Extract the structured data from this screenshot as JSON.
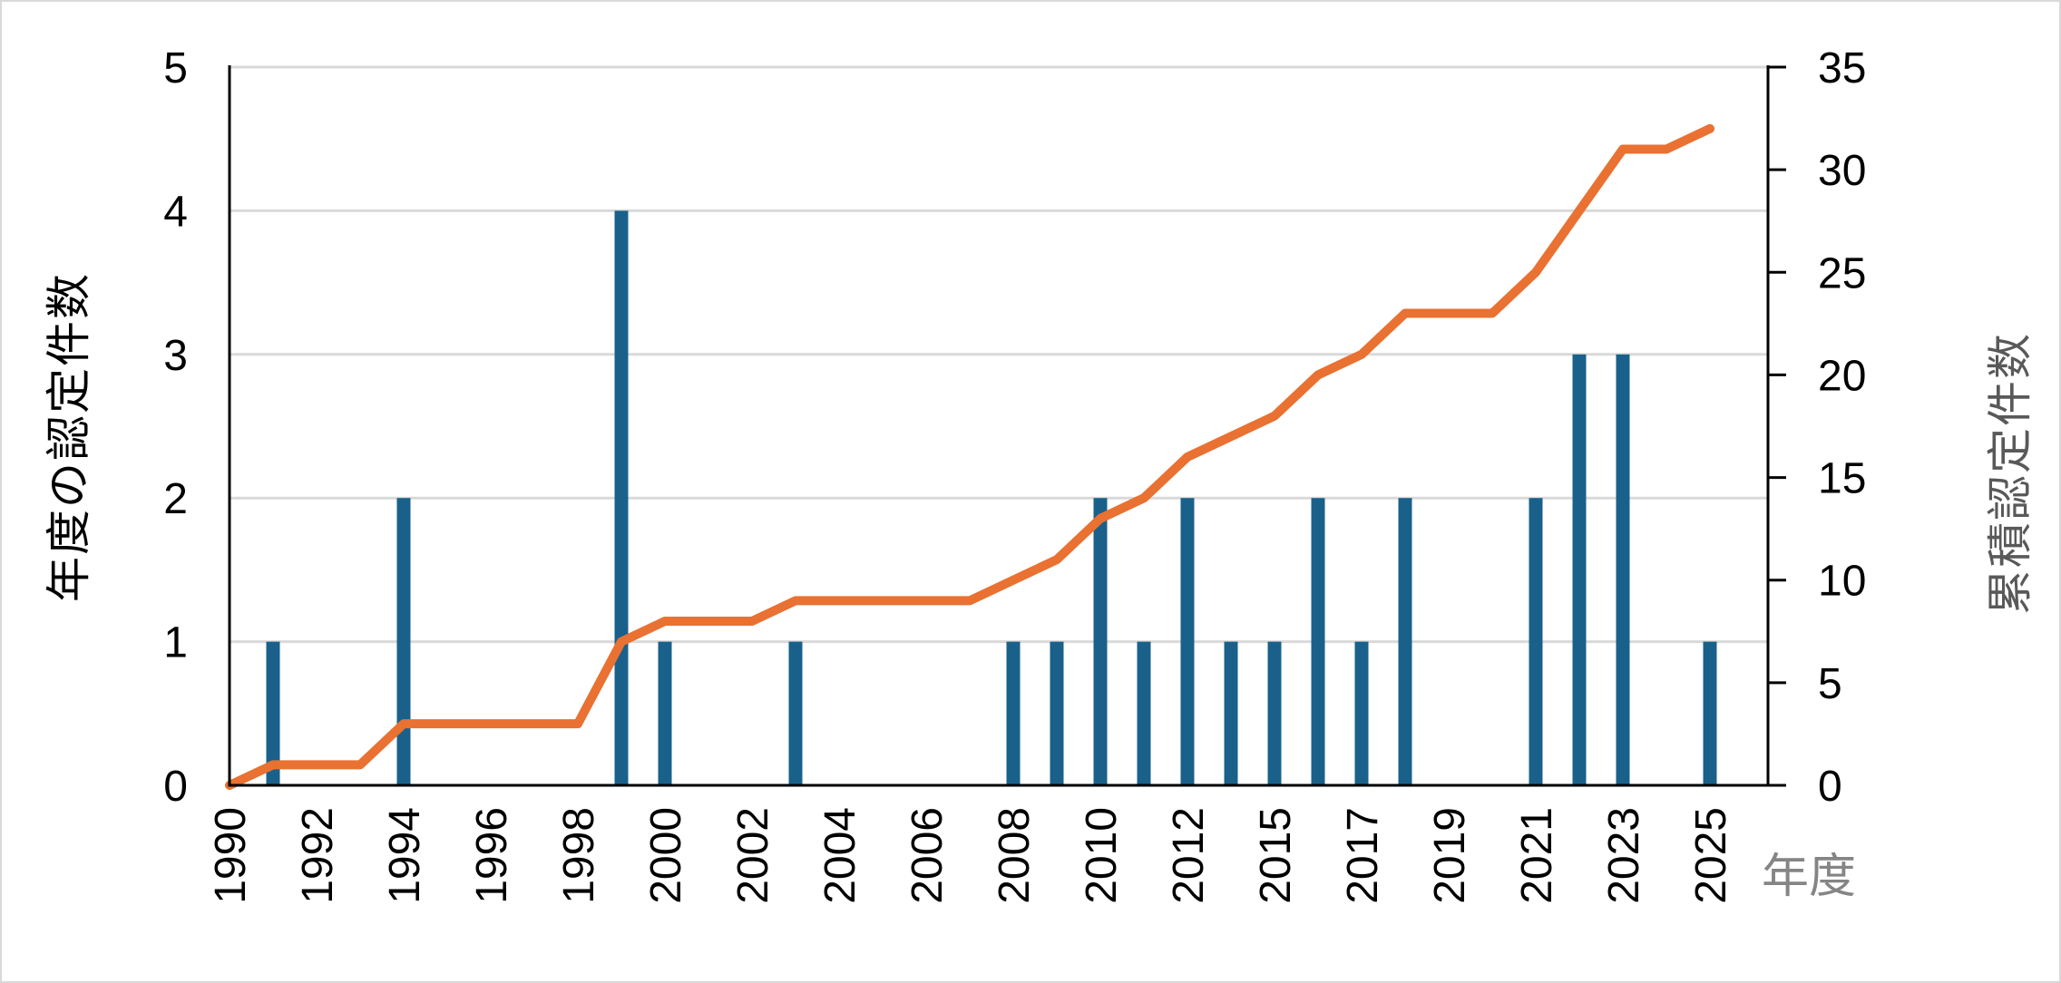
{
  "chart_data": {
    "type": "bar",
    "subtype": "combo-bar-line-dual-axis",
    "title": "",
    "categories": [
      "1990",
      "1991",
      "1992",
      "1993",
      "1994",
      "1995",
      "1996",
      "1997",
      "1998",
      "1999",
      "2000",
      "2001",
      "2002",
      "2003",
      "2004",
      "2005",
      "2006",
      "2007",
      "2008",
      "2009",
      "2010",
      "2011",
      "2012",
      "2014",
      "2015",
      "2016",
      "2017",
      "2018",
      "2019",
      "2020",
      "2021",
      "2022",
      "2023",
      "2024",
      "2025"
    ],
    "series": [
      {
        "name": "年度の認定件数",
        "type": "bar",
        "axis": "left",
        "color": "#19618A",
        "values": [
          0,
          1,
          0,
          0,
          2,
          0,
          0,
          0,
          0,
          4,
          1,
          0,
          0,
          1,
          0,
          0,
          0,
          0,
          1,
          1,
          2,
          1,
          2,
          1,
          1,
          2,
          1,
          2,
          0,
          0,
          2,
          3,
          3,
          0,
          1
        ]
      },
      {
        "name": "累積認定件数",
        "type": "line",
        "axis": "right",
        "color": "#E97132",
        "values": [
          0,
          1,
          1,
          1,
          3,
          3,
          3,
          3,
          3,
          7,
          8,
          8,
          8,
          9,
          9,
          9,
          9,
          9,
          10,
          11,
          13,
          14,
          16,
          17,
          18,
          20,
          21,
          23,
          23,
          23,
          25,
          28,
          31,
          31,
          32
        ]
      }
    ],
    "left_axis": {
      "title": "年度の認定件数",
      "min": 0,
      "max": 5,
      "tick_step": 1,
      "tick_labels": [
        "0",
        "1",
        "2",
        "3",
        "4",
        "5"
      ]
    },
    "right_axis": {
      "title": "累積認定件数",
      "min": 0,
      "max": 35,
      "tick_step": 5,
      "tick_labels": [
        "0",
        "5",
        "10",
        "15",
        "20",
        "25",
        "30",
        "35"
      ]
    },
    "x_axis": {
      "title": "年度",
      "labels_shown": [
        "1990",
        "1992",
        "1994",
        "1996",
        "1998",
        "2000",
        "2002",
        "2004",
        "2006",
        "2008",
        "2010",
        "2012",
        "2015",
        "2017",
        "2019",
        "2021",
        "2023",
        "2025"
      ],
      "label_rotation_deg": -90
    },
    "grid": true,
    "legend_position": "none"
  },
  "colors": {
    "background": "#ffffff",
    "chart_border": "#d9d9d9",
    "gridline": "#d9d9d9",
    "axis_line": "#000000",
    "tick_label": "#000000",
    "bar": "#19618A",
    "line": "#E97132",
    "x_axis_title": "#858585",
    "right_axis_title": "#595959"
  }
}
